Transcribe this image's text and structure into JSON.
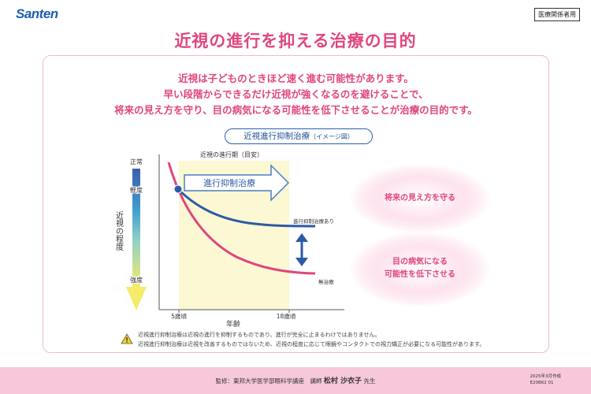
{
  "header": {
    "logo": "Santen",
    "badge": "医療関係者用"
  },
  "title": "近視の進行を抑える治療の目的",
  "intro": [
    "近視は子どものときほど速く進む可能性があります。",
    "早い段階からできるだけ近視が強くなるのを避けることで、",
    "将来の見え方を守り、目の病気になる可能性を低下させることが治療の目的です。"
  ],
  "diagram": {
    "pill_main": "近視進行抑制治療",
    "pill_sub": "（イメージ図）",
    "period_label": "近視の進行期（目安）",
    "arrow_label": "進行抑制治療",
    "y_title": "近視の程度",
    "y_top": "正常",
    "y_mild": "軽度",
    "y_strong": "強度",
    "x_title": "年齢",
    "x_ticks": [
      "5歳頃",
      "18歳頃"
    ],
    "curve_treated": "進行抑制治療あり",
    "curve_untreated": "無治療",
    "benefit_1": "将来の見え方を守る",
    "benefit_2_line1": "目の病気になる",
    "benefit_2_line2": "可能性を低下させる",
    "colors": {
      "treated": "#2d5aa6",
      "untreated": "#e0457e",
      "period_band": "#fbf8d3",
      "arrow": "#4a7cc4"
    }
  },
  "notes": [
    "近視進行抑制治療は近視の進行を抑制するものであり、進行が完全に止まるわけではありません。",
    "近視進行抑制治療は近視を改善するものではないため、近視の程度に応じて眼鏡やコンタクトでの視力矯正が必要になる可能性があります。"
  ],
  "footer": {
    "credit_prefix": "監修：東邦大学医学部眼科学講座　講師",
    "credit_name": "松村 沙衣子",
    "credit_suffix": "先生",
    "date": "2025年3月作成",
    "code": "E20B62 01"
  }
}
